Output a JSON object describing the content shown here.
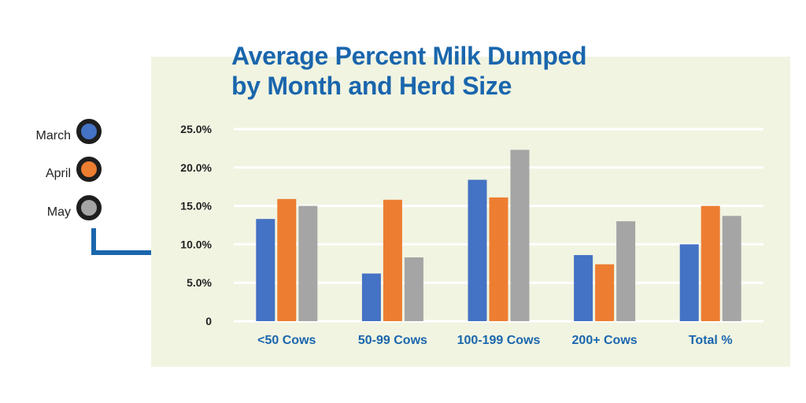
{
  "chart_data": {
    "type": "bar",
    "title": [
      "Average Percent Milk Dumped",
      "by Month and Herd Size"
    ],
    "categories": [
      "<50 Cows",
      "50-99 Cows",
      "100-199 Cows",
      "200+ Cows",
      "Total %"
    ],
    "series": [
      {
        "name": "March",
        "color": "#4472c4",
        "values": [
          13.3,
          6.2,
          18.4,
          8.6,
          10.0
        ]
      },
      {
        "name": "April",
        "color": "#ed7d31",
        "values": [
          15.9,
          15.8,
          16.1,
          7.4,
          15.0
        ]
      },
      {
        "name": "May",
        "color": "#a5a5a5",
        "values": [
          15.0,
          8.3,
          22.3,
          13.0,
          13.7
        ]
      }
    ],
    "yticks": [
      {
        "value": 0,
        "label": "0"
      },
      {
        "value": 5,
        "label": "5.0%"
      },
      {
        "value": 10,
        "label": "10.0%"
      },
      {
        "value": 15,
        "label": "15.0%"
      },
      {
        "value": 20,
        "label": "20.0%"
      },
      {
        "value": 25,
        "label": "25.0%"
      }
    ],
    "ylim": [
      0,
      25
    ],
    "xlabel": "",
    "ylabel": "",
    "grid": true,
    "legend_position": "left",
    "colors": {
      "title": "#1a66ad",
      "category_label": "#1a66ad",
      "panel": "#f1f4e1",
      "connector": "#1a66ad"
    }
  }
}
